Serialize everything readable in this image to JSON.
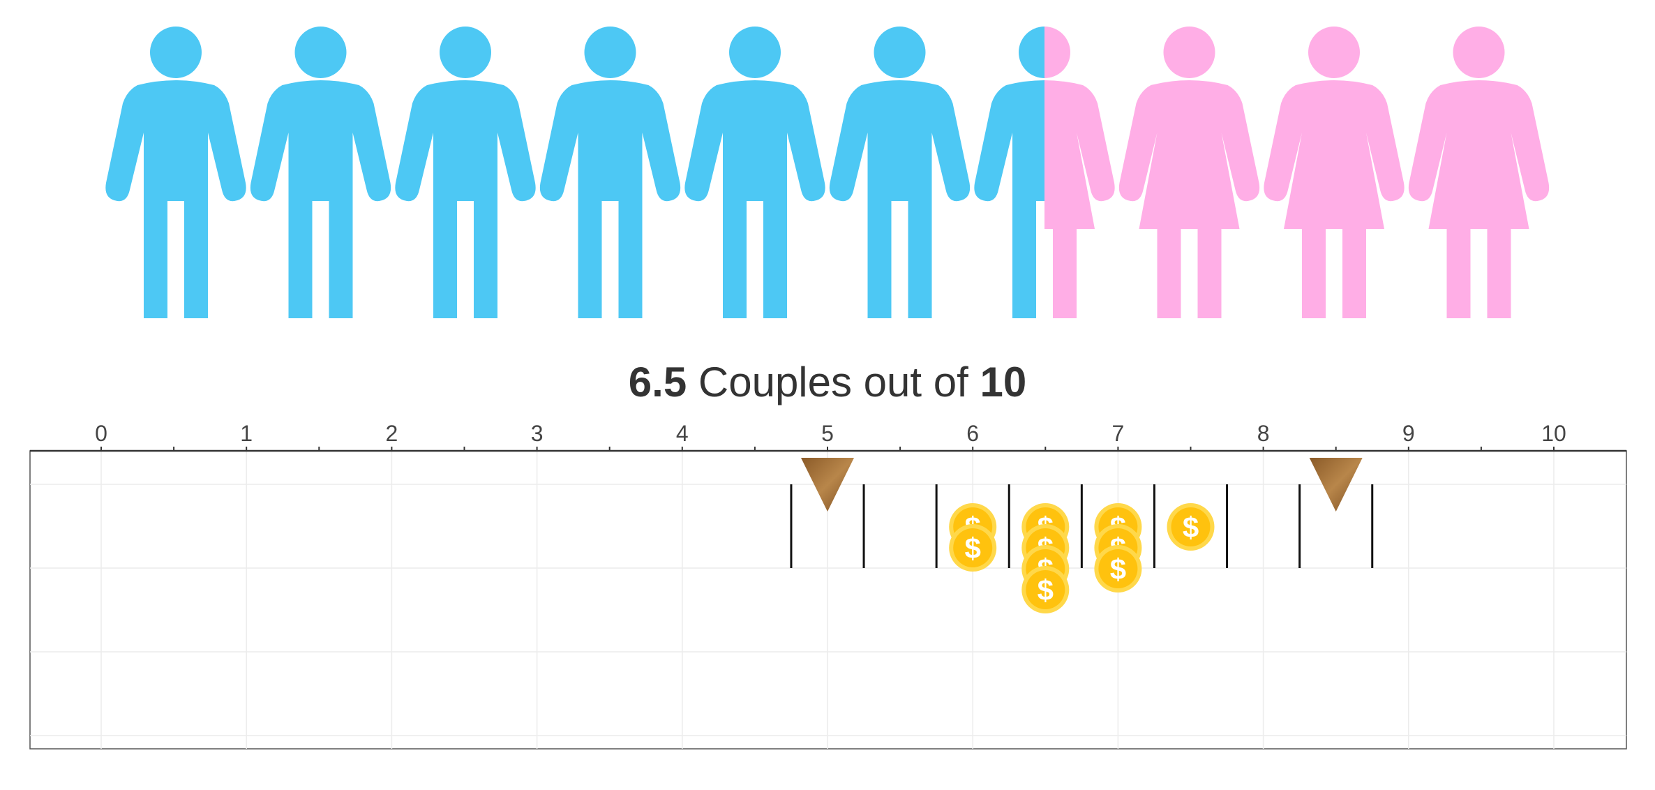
{
  "headline": {
    "value": "6.5",
    "middle": " Couples out of ",
    "total": "10"
  },
  "icons": {
    "count": 10,
    "male_fraction_total": 6.5,
    "male_color": "#4dc8f4",
    "female_color": "#ffaee6",
    "male_icon": "male-person-icon",
    "female_icon": "female-person-icon"
  },
  "chart_data": {
    "type": "scatter",
    "title": "6.5 Couples out of 10",
    "xlabel": "",
    "ylabel": "",
    "xlim": [
      -0.5,
      10.5
    ],
    "x_ticks": [
      "0",
      "1",
      "2",
      "3",
      "4",
      "5",
      "6",
      "7",
      "8",
      "9",
      "10"
    ],
    "grid": true,
    "bins": [
      {
        "center": 5.0,
        "coins": 0
      },
      {
        "center": 6.0,
        "coins": 2
      },
      {
        "center": 6.5,
        "coins": 4
      },
      {
        "center": 7.0,
        "coins": 3
      },
      {
        "center": 7.5,
        "coins": 1
      },
      {
        "center": 8.5,
        "coins": 0
      }
    ],
    "markers": [
      {
        "type": "triangle-marker",
        "x": 5.0
      },
      {
        "type": "triangle-marker",
        "x": 8.5
      }
    ],
    "coin_symbol": "$",
    "coin_color": "#ffc20e",
    "marker_color": "#a5753d"
  }
}
